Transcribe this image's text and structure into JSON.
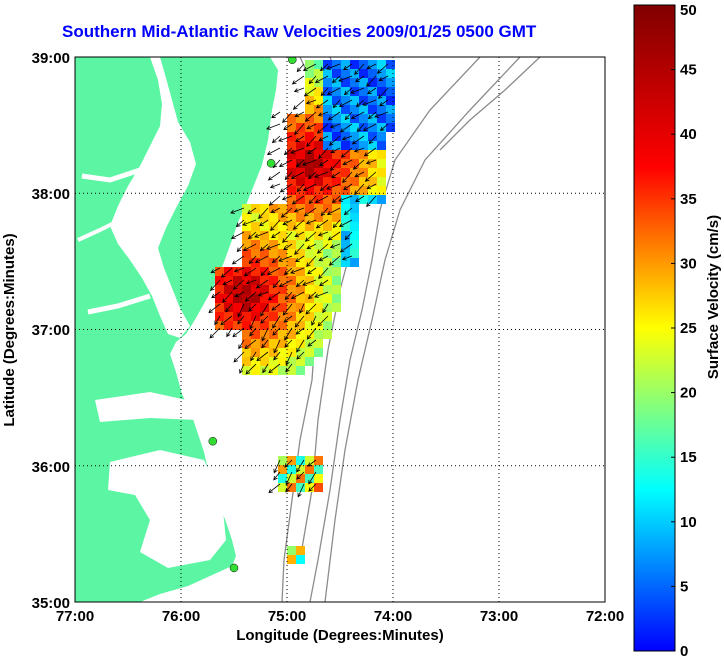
{
  "title": "Southern Mid-Atlantic Raw Velocities 2009/01/25 0500 GMT",
  "x_axis": {
    "label": "Longitude (Degrees:Minutes)",
    "ticks": [
      "77:00",
      "76:00",
      "75:00",
      "74:00",
      "73:00",
      "72:00"
    ]
  },
  "y_axis": {
    "label": "Latitude (Degrees:Minutes)",
    "ticks": [
      "39:00",
      "38:00",
      "37:00",
      "36:00",
      "35:00"
    ]
  },
  "colorbar": {
    "label": "Surface Velocity (cm/s)",
    "ticks": [
      "50",
      "45",
      "40",
      "35",
      "30",
      "25",
      "20",
      "15",
      "10",
      "5",
      "0"
    ],
    "min": 0,
    "max": 50,
    "colormap": "jet"
  },
  "colors": {
    "land": "#5cf5a4",
    "water": "#ffffff",
    "bathymetry": "#8c8c8c",
    "title": "#0000ff",
    "station": "#33dd33"
  },
  "map_extent": {
    "lon": [
      -77,
      -72
    ],
    "lat": [
      35,
      39
    ]
  },
  "grid": "dotted",
  "stations": [
    {
      "lon": -74.95,
      "lat": 38.98
    },
    {
      "lon": -75.15,
      "lat": 38.22
    },
    {
      "lon": -75.7,
      "lat": 36.18
    },
    {
      "lon": -75.5,
      "lat": 35.25
    }
  ]
}
